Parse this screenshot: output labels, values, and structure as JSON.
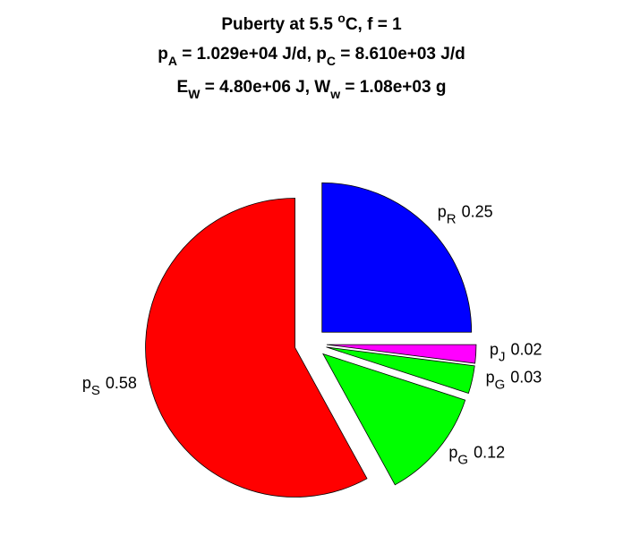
{
  "chart_data": {
    "type": "pie",
    "title_lines": [
      [
        {
          "t": "Puberty at 5.5 "
        },
        {
          "sup": "o"
        },
        {
          "t": "C, f = 1"
        }
      ],
      [
        {
          "t": "p"
        },
        {
          "sub": "A"
        },
        {
          "t": " = 1.029e+04 J/d,  p"
        },
        {
          "sub": "C"
        },
        {
          "t": " = 8.610e+03 J/d"
        }
      ],
      [
        {
          "t": "E"
        },
        {
          "sub": "W"
        },
        {
          "t": " = 4.80e+06 J, W"
        },
        {
          "sub": "w"
        },
        {
          "t": " = 1.08e+03 g"
        }
      ]
    ],
    "label_prefix": "p",
    "categories": [
      "R",
      "J",
      "G",
      "G",
      "S"
    ],
    "values": [
      0.25,
      0.02,
      0.03,
      0.12,
      0.58
    ],
    "colors": [
      "#0000ff",
      "#ff00ff",
      "#00ff00",
      "#00ff00",
      "#ff0000"
    ],
    "explode": true
  }
}
